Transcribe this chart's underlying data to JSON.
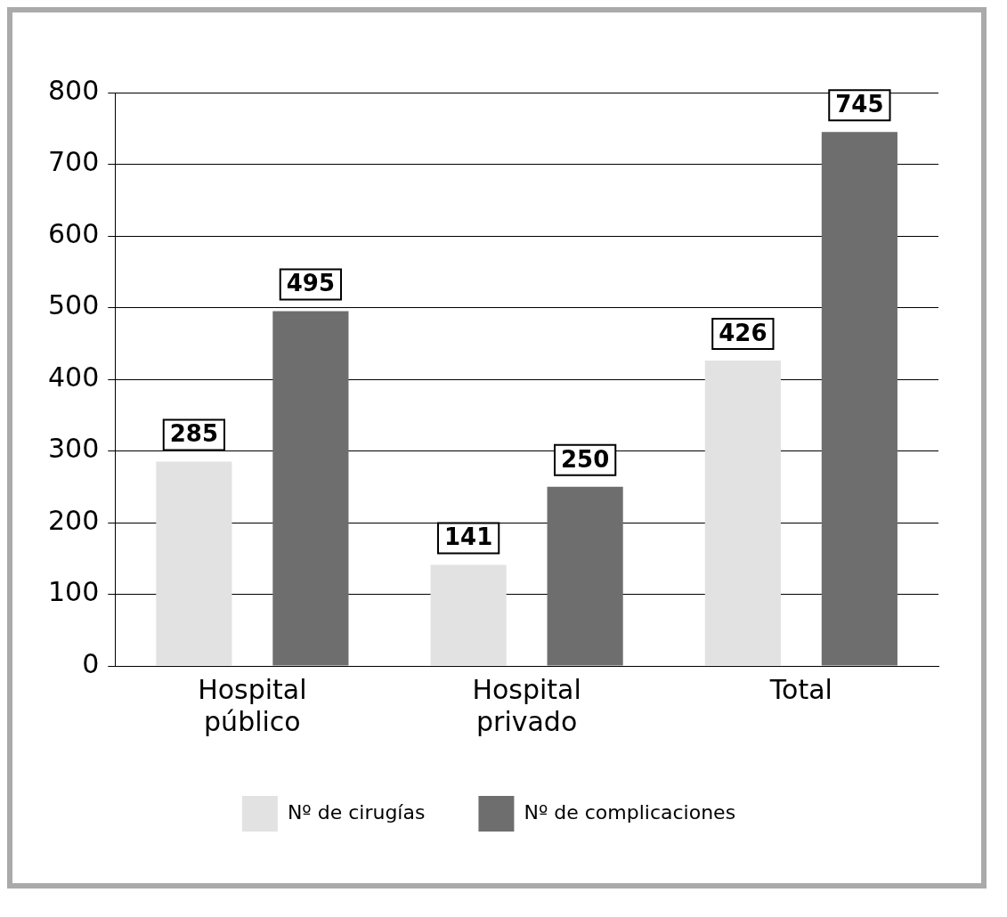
{
  "chart_data": {
    "type": "bar",
    "categories": [
      "Hospital público",
      "Hospital privado",
      "Total"
    ],
    "series": [
      {
        "name": "Nº de cirugías",
        "color": "#e2e2e2",
        "values": [
          285,
          141,
          426
        ]
      },
      {
        "name": "Nº de complicaciones",
        "color": "#6e6e6e",
        "values": [
          495,
          250,
          745
        ]
      }
    ],
    "ylim": [
      0,
      800
    ],
    "yticks": [
      0,
      100,
      200,
      300,
      400,
      500,
      600,
      700,
      800
    ],
    "grid": "y",
    "legend": "bottom",
    "data_labels": true
  }
}
